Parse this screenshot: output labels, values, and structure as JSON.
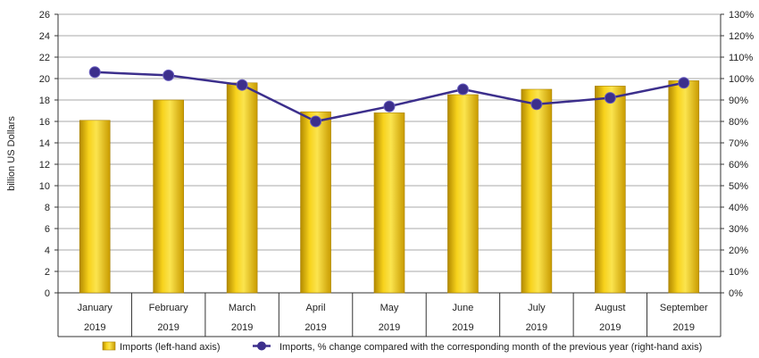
{
  "chart_data": {
    "type": "bar",
    "categories": [
      {
        "month": "January",
        "year": "2019"
      },
      {
        "month": "February",
        "year": "2019"
      },
      {
        "month": "March",
        "year": "2019"
      },
      {
        "month": "April",
        "year": "2019"
      },
      {
        "month": "May",
        "year": "2019"
      },
      {
        "month": "June",
        "year": "2019"
      },
      {
        "month": "July",
        "year": "2019"
      },
      {
        "month": "August",
        "year": "2019"
      },
      {
        "month": "September",
        "year": "2019"
      }
    ],
    "series": [
      {
        "name": "Imports (left-hand axis)",
        "type": "bar",
        "axis": "left",
        "color": "#f2c700",
        "values": [
          16.1,
          18.0,
          19.6,
          16.9,
          16.8,
          18.5,
          19.0,
          19.3,
          19.8
        ]
      },
      {
        "name": "Imports, % change compared with the corresponding month of the previous year (right-hand axis)",
        "type": "line",
        "axis": "right",
        "color": "#3c2f8c",
        "values": [
          103,
          101.5,
          97,
          80,
          87,
          95,
          88,
          91,
          98
        ]
      }
    ],
    "ylabel": "billion US Dollars",
    "ylim": [
      0,
      26
    ],
    "y_ticks": [
      "0",
      "2",
      "4",
      "6",
      "8",
      "10",
      "12",
      "14",
      "16",
      "18",
      "20",
      "22",
      "24",
      "26"
    ],
    "y2lim": [
      0,
      130
    ],
    "y2_ticks": [
      "0%",
      "10%",
      "20%",
      "30%",
      "40%",
      "50%",
      "60%",
      "70%",
      "80%",
      "90%",
      "100%",
      "110%",
      "120%",
      "130%"
    ],
    "grid": true,
    "legend_position": "bottom"
  }
}
